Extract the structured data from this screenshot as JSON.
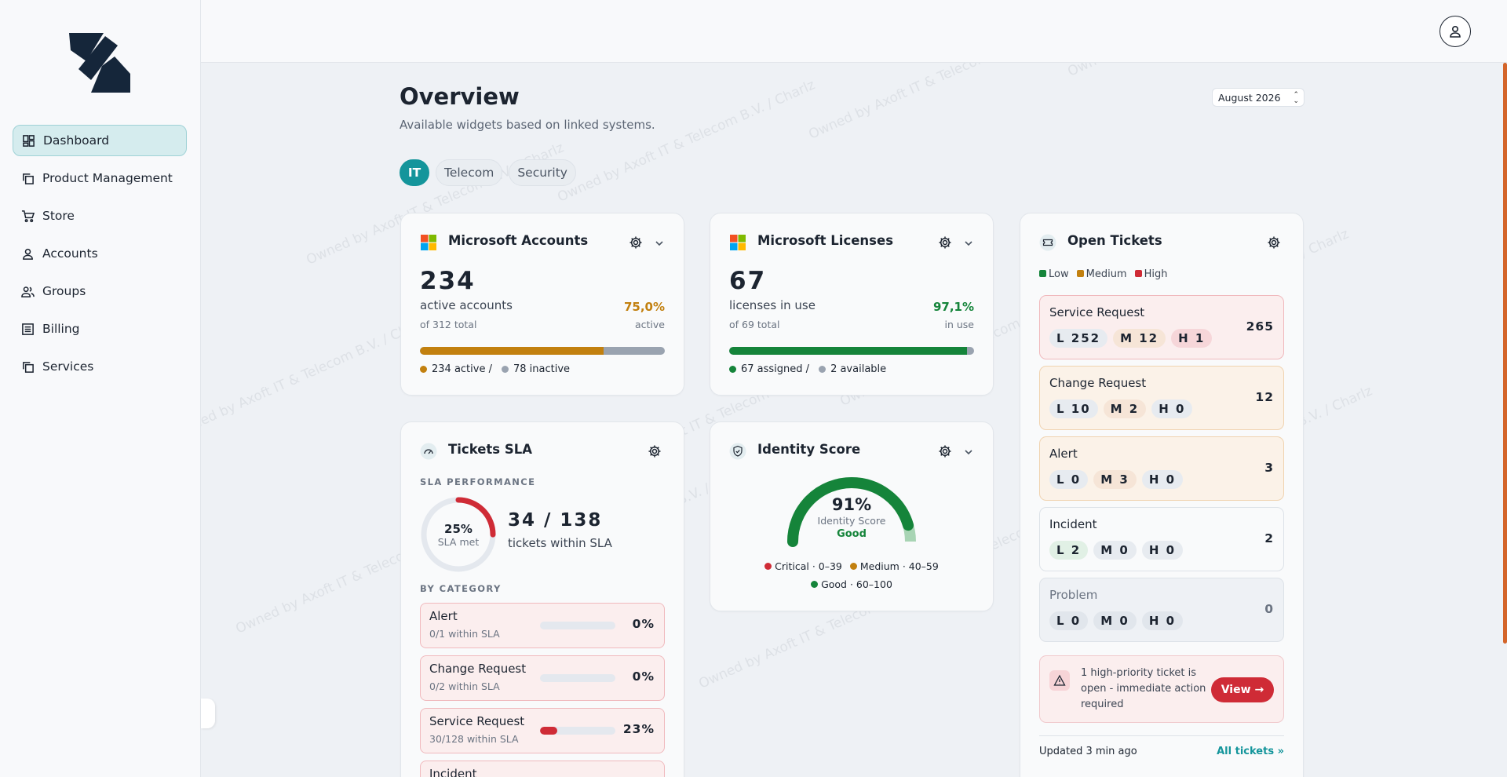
{
  "nav": {
    "items": [
      {
        "label": "Dashboard",
        "icon": "dashboard-icon",
        "active": true
      },
      {
        "label": "Product Management",
        "icon": "copy-icon",
        "active": false
      },
      {
        "label": "Store",
        "icon": "cart-icon",
        "active": false
      },
      {
        "label": "Accounts",
        "icon": "user-icon",
        "active": false
      },
      {
        "label": "Groups",
        "icon": "users-icon",
        "active": false
      },
      {
        "label": "Billing",
        "icon": "list-icon",
        "active": false
      },
      {
        "label": "Services",
        "icon": "copy-icon",
        "active": false
      }
    ]
  },
  "watermark": "Owned by Axoft IT & Telecom B.V. / Charlz",
  "header": {
    "title": "Overview",
    "subtitle": "Available widgets based on linked systems.",
    "month": "August 2026"
  },
  "tabs": [
    {
      "label": "IT",
      "active": true
    },
    {
      "label": "Telecom",
      "active": false
    },
    {
      "label": "Security",
      "active": false
    }
  ],
  "ms_accounts": {
    "title": "Microsoft Accounts",
    "count": "234",
    "label": "active accounts",
    "total": "of 312 total",
    "pct": "75,0%",
    "pct_label": "active",
    "progress": 0.75,
    "legend_a": "234 active /",
    "legend_b": "78 inactive"
  },
  "ms_licenses": {
    "title": "Microsoft Licenses",
    "count": "67",
    "label": "licenses in use",
    "total": "of 69 total",
    "pct": "97,1%",
    "pct_label": "in use",
    "progress": 0.971,
    "legend_a": "67 assigned /",
    "legend_b": "2 available"
  },
  "tickets_sla": {
    "title": "Tickets SLA",
    "section": "SLA PERFORMANCE",
    "donut_pct": "25%",
    "donut_label": "SLA met",
    "donut_value": 0.25,
    "ratio": "34 / 138",
    "ratio_label": "tickets within SLA",
    "category_heading": "BY CATEGORY",
    "categories": [
      {
        "name": "Alert",
        "sub": "0/1 within SLA",
        "pct": "0%",
        "value": 0
      },
      {
        "name": "Change Request",
        "sub": "0/2 within SLA",
        "pct": "0%",
        "value": 0
      },
      {
        "name": "Service Request",
        "sub": "30/128 within SLA",
        "pct": "23%",
        "value": 0.23
      },
      {
        "name": "Incident",
        "sub": "",
        "pct": "",
        "value": 0
      }
    ]
  },
  "identity": {
    "title": "Identity Score",
    "score": "91%",
    "score_value": 0.91,
    "label": "Identity Score",
    "status": "Good",
    "legend_critical": "Critical · 0–39",
    "legend_medium": "Medium · 40–59",
    "legend_good": "Good · 60–100"
  },
  "open_tickets": {
    "title": "Open Tickets",
    "legend_low": "Low",
    "legend_medium": "Medium",
    "legend_high": "High",
    "rows": [
      {
        "name": "Service Request",
        "l": "L 252",
        "m": "M 12",
        "h": "H 1",
        "count": "265"
      },
      {
        "name": "Change Request",
        "l": "L 10",
        "m": "M 2",
        "h": "H 0",
        "count": "12"
      },
      {
        "name": "Alert",
        "l": "L 0",
        "m": "M 3",
        "h": "H 0",
        "count": "3"
      },
      {
        "name": "Incident",
        "l": "L 2",
        "m": "M 0",
        "h": "H 0",
        "count": "2"
      },
      {
        "name": "Problem",
        "l": "L 0",
        "m": "M 0",
        "h": "H 0",
        "count": "0"
      }
    ],
    "alert_text": "1 high-priority ticket is open - immediate action required",
    "view_label": "View",
    "updated": "Updated 3 min ago",
    "all_link": "All tickets"
  },
  "colors": {
    "accent": "#14959b",
    "orange": "#c2800f",
    "green": "#15843a",
    "red": "#cf2b36",
    "gray": "#9aa3b0"
  }
}
